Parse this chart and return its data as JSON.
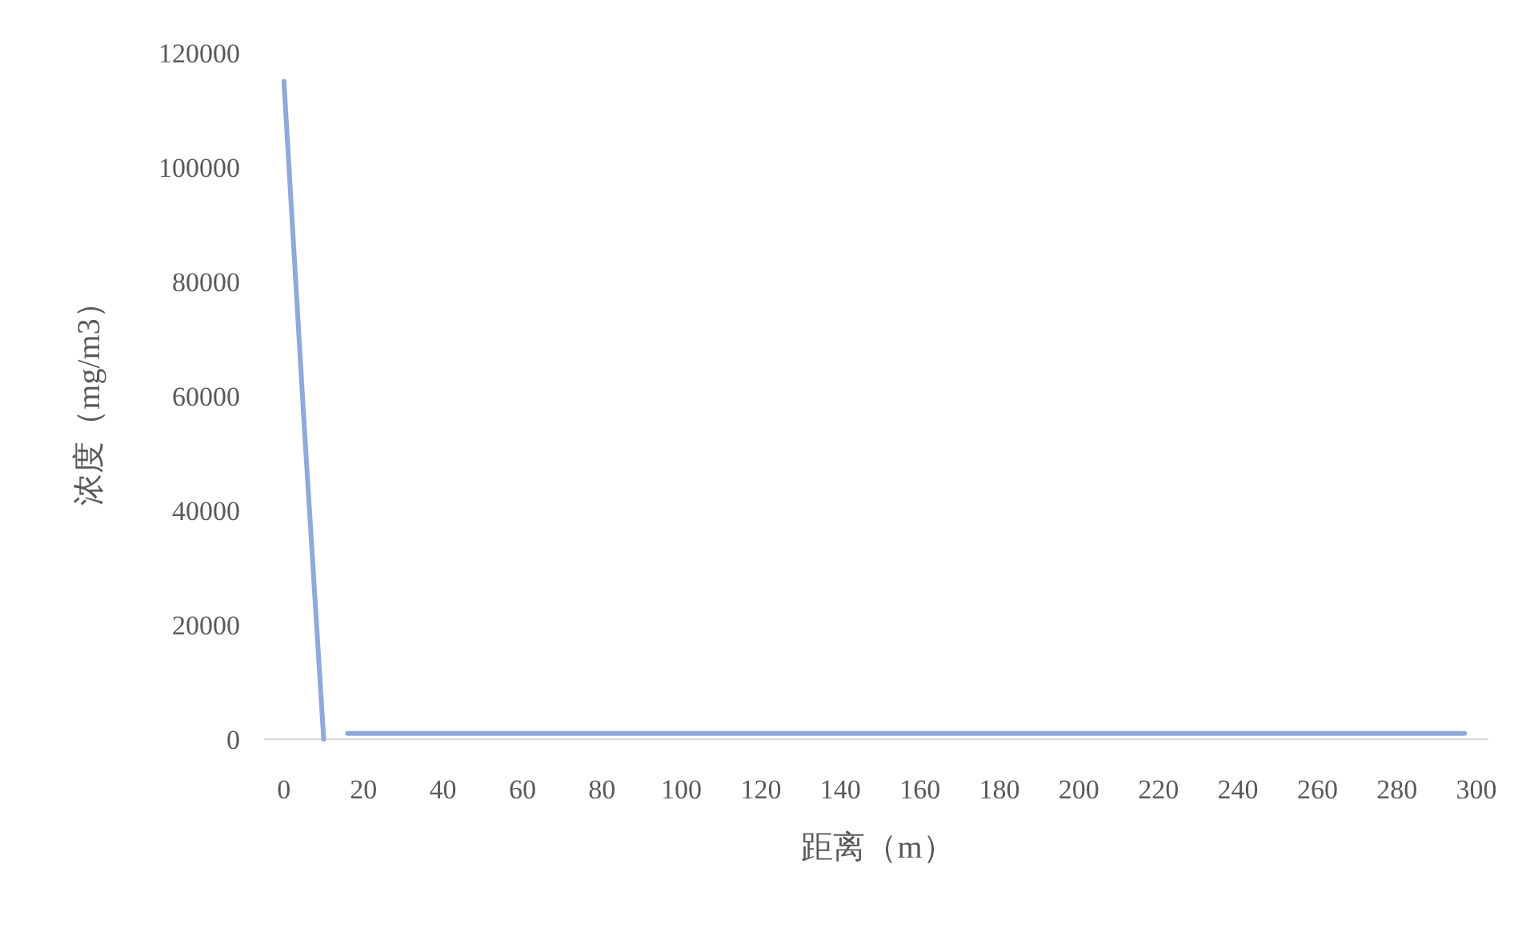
{
  "chart_data": {
    "type": "line",
    "xlabel": "距离（m）",
    "ylabel": "浓度（mg/m3）",
    "series": [
      {
        "color": "#8eaadb",
        "x": [
          0,
          5,
          10
        ],
        "values": [
          115000,
          56000,
          0
        ]
      },
      {
        "color": "#8eaadb",
        "x": [
          16,
          297
        ],
        "values": [
          1000,
          1000
        ]
      }
    ],
    "xlim": [
      -5,
      303
    ],
    "ylim": [
      0,
      120000
    ],
    "xticks": [
      0,
      20,
      40,
      60,
      80,
      100,
      120,
      140,
      160,
      180,
      200,
      220,
      240,
      260,
      280,
      300
    ],
    "yticks": [
      0,
      20000,
      40000,
      60000,
      80000,
      100000,
      120000
    ],
    "grid": false,
    "marker": "none",
    "line_style": "solid"
  }
}
